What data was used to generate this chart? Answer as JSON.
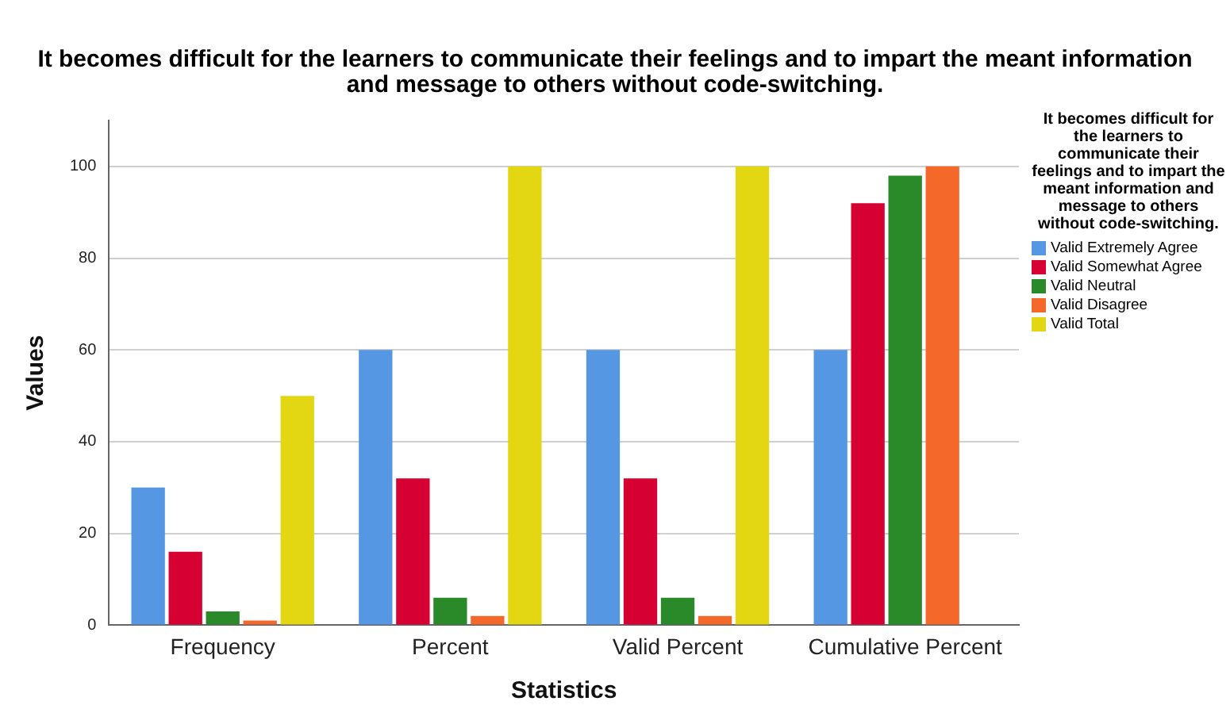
{
  "chart_data": {
    "type": "bar",
    "title": "It becomes difficult for the learners to communicate their feelings and to impart the meant information and message to others without code-switching.",
    "xlabel": "Statistics",
    "ylabel": "Values",
    "legend_title": "It becomes difficult for the learners to communicate their feelings and to impart the meant information and message to others without code-switching.",
    "categories": [
      "Frequency",
      "Percent",
      "Valid Percent",
      "Cumulative Percent"
    ],
    "series": [
      {
        "name": "Valid Extremely Agree",
        "color": "#5597e3",
        "values": [
          30,
          60,
          60,
          60
        ]
      },
      {
        "name": "Valid Somewhat Agree",
        "color": "#d60032",
        "values": [
          16,
          32,
          32,
          92
        ]
      },
      {
        "name": "Valid Neutral",
        "color": "#2a8a2a",
        "values": [
          3,
          6,
          6,
          98
        ]
      },
      {
        "name": "Valid Disagree",
        "color": "#f4692a",
        "values": [
          1,
          2,
          2,
          100
        ]
      },
      {
        "name": "Valid Total",
        "color": "#e2d712",
        "values": [
          50,
          100,
          100,
          null
        ]
      }
    ],
    "ylim": [
      0,
      110
    ],
    "yticks": [
      0,
      20,
      40,
      60,
      80,
      100
    ],
    "grid": "y",
    "legend": "right"
  }
}
